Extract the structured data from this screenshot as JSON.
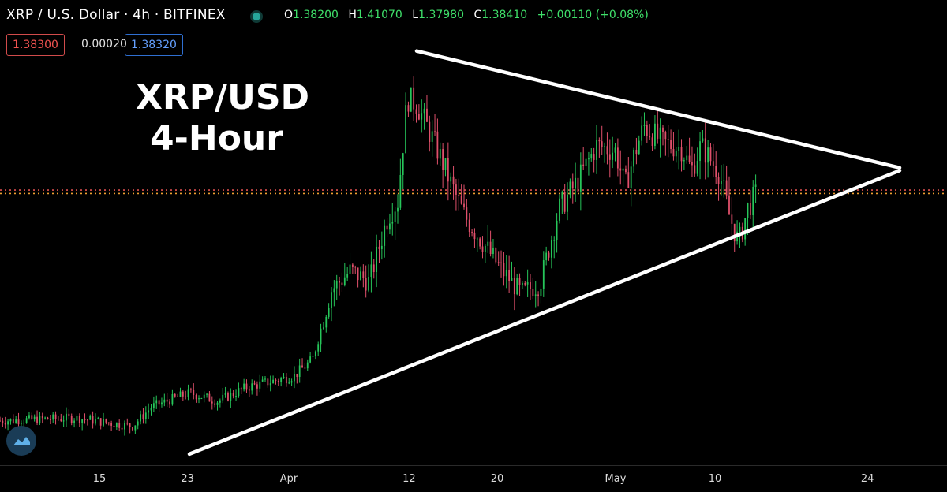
{
  "header": {
    "symbol": "XRP / U.S. Dollar · 4h · BITFINEX",
    "ohlc": [
      {
        "k": "O",
        "v": "1.38200"
      },
      {
        "k": "H",
        "v": "1.41070"
      },
      {
        "k": "L",
        "v": "1.37980"
      },
      {
        "k": "C",
        "v": "1.38410"
      }
    ],
    "change": "+0.00110 (+0.08%)"
  },
  "quote": {
    "bid": "1.38300",
    "spread": "0.00020",
    "ask": "1.38320"
  },
  "annotation": {
    "line1": "XRP/USD",
    "line2": "4-Hour"
  },
  "colors": {
    "up": "#26c65a",
    "down": "#e0506b",
    "trendline": "#ffffff",
    "price_line_red": "#e05050",
    "price_line_orange": "#f0a030",
    "background": "#000000"
  },
  "chart_data": {
    "type": "candlestick",
    "title": "",
    "x_ticks": [
      "15",
      "23",
      "Apr",
      "12",
      "20",
      "May",
      "10",
      "24"
    ],
    "y_range": [
      0.4,
      1.96
    ],
    "grid": false,
    "price_lines": [
      1.3841,
      1.383
    ],
    "path_points": [
      {
        "t": 0,
        "p": 0.56
      },
      {
        "t": 8,
        "p": 0.57
      },
      {
        "t": 14,
        "p": 0.54
      },
      {
        "t": 16,
        "p": 0.61
      },
      {
        "t": 20,
        "p": 0.66
      },
      {
        "t": 23,
        "p": 0.63
      },
      {
        "t": 26,
        "p": 0.68
      },
      {
        "t": 31,
        "p": 0.72
      },
      {
        "t": 33,
        "p": 0.78
      },
      {
        "t": 35,
        "p": 1.03
      },
      {
        "t": 37,
        "p": 1.1
      },
      {
        "t": 39,
        "p": 1.06
      },
      {
        "t": 41,
        "p": 1.3
      },
      {
        "t": 42,
        "p": 1.35
      },
      {
        "t": 43,
        "p": 1.72
      },
      {
        "t": 44,
        "p": 1.7
      },
      {
        "t": 46,
        "p": 1.55
      },
      {
        "t": 48,
        "p": 1.38
      },
      {
        "t": 49,
        "p": 1.3
      },
      {
        "t": 51,
        "p": 1.2
      },
      {
        "t": 53,
        "p": 1.1
      },
      {
        "t": 55,
        "p": 1.02
      },
      {
        "t": 57,
        "p": 1.05
      },
      {
        "t": 59,
        "p": 1.32
      },
      {
        "t": 61,
        "p": 1.42
      },
      {
        "t": 63,
        "p": 1.55
      },
      {
        "t": 65,
        "p": 1.53
      },
      {
        "t": 66,
        "p": 1.4
      },
      {
        "t": 67,
        "p": 1.52
      },
      {
        "t": 68,
        "p": 1.62
      },
      {
        "t": 70,
        "p": 1.56
      },
      {
        "t": 72,
        "p": 1.54
      },
      {
        "t": 73,
        "p": 1.46
      },
      {
        "t": 74,
        "p": 1.55
      },
      {
        "t": 76,
        "p": 1.45
      },
      {
        "t": 77,
        "p": 1.3
      },
      {
        "t": 78,
        "p": 1.2
      },
      {
        "t": 79,
        "p": 1.33
      },
      {
        "t": 80,
        "p": 1.38
      }
    ],
    "trendlines": [
      {
        "name": "",
        "from": {
          "t": 44,
          "p": 1.89
        },
        "to": {
          "t": 95,
          "p": 1.47
        }
      },
      {
        "name": "",
        "from": {
          "t": 20,
          "p": 0.44
        },
        "to": {
          "t": 95,
          "p": 1.46
        }
      }
    ]
  }
}
